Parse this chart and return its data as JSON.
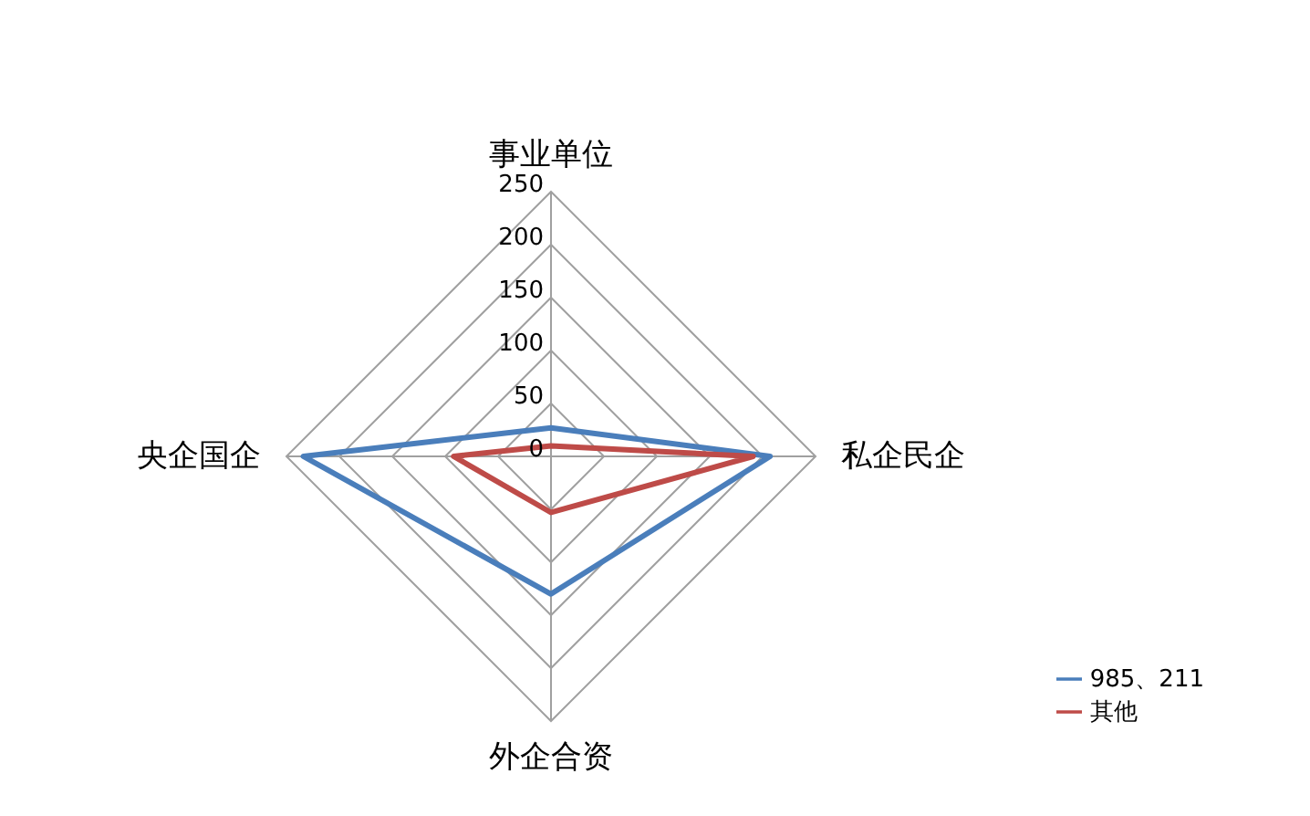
{
  "chart_data": {
    "type": "radar",
    "categories": [
      "事业单位",
      "私企民企",
      "外企合资",
      "央企国企"
    ],
    "series": [
      {
        "name": "985、211",
        "color": "#4a7ebb",
        "values": [
          27,
          207,
          130,
          234
        ]
      },
      {
        "name": "其他",
        "color": "#be4b48",
        "values": [
          10,
          191,
          53,
          92
        ]
      }
    ],
    "ylim": [
      0,
      250
    ],
    "yticks": [
      0,
      50,
      100,
      150,
      200,
      250
    ],
    "grid": true,
    "legend": "bottom right",
    "marker": "none",
    "line_style": "solid"
  }
}
